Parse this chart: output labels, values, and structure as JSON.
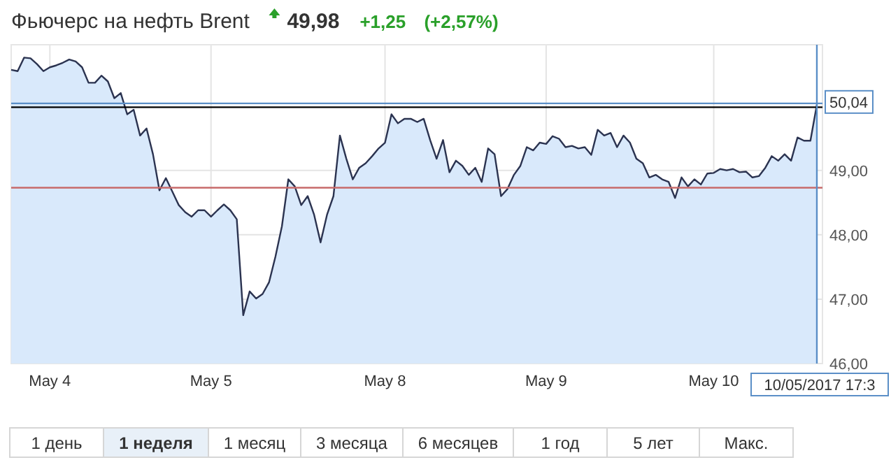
{
  "chart_data": {
    "type": "area",
    "title": "Фьючерс на нефть Brent",
    "annotations": [
      "49,98",
      "+1,25",
      "(+2,57%)",
      "1 день",
      "1 неделя",
      "1 месяц",
      "3 месяца",
      "6 месяцев",
      "1 год",
      "5 лет",
      "Макс."
    ],
    "categories": [
      null,
      null,
      null,
      null,
      null,
      null,
      "May 4",
      null,
      null,
      null,
      null,
      null,
      null,
      null,
      null,
      null,
      null,
      null,
      null,
      null,
      null,
      null,
      null,
      null,
      null,
      null,
      null,
      null,
      null,
      null,
      null,
      "May 5",
      null,
      null,
      null,
      null,
      null,
      null,
      null,
      null,
      null,
      null,
      null,
      null,
      null,
      null,
      null,
      null,
      null,
      null,
      null,
      null,
      null,
      null,
      null,
      null,
      null,
      null,
      "May 8",
      null,
      null,
      null,
      null,
      null,
      null,
      null,
      null,
      null,
      null,
      null,
      null,
      null,
      null,
      null,
      null,
      null,
      null,
      null,
      null,
      null,
      null,
      null,
      null,
      "May 9",
      null,
      null,
      null,
      null,
      null,
      null,
      null,
      null,
      null,
      null,
      null,
      null,
      null,
      null,
      null,
      null,
      null,
      null,
      null,
      null,
      null,
      null,
      null,
      null,
      null,
      "May 10",
      null,
      null,
      null,
      null,
      null,
      null,
      null,
      null,
      null,
      null,
      null,
      null,
      null,
      null,
      null,
      "10/05/2017 17:3"
    ],
    "ylim": [
      46,
      50.95
    ],
    "yticks": [
      {
        "value": 46,
        "label": "46,00"
      },
      {
        "value": 47,
        "label": "47,00"
      },
      {
        "value": 48,
        "label": "48,00"
      },
      {
        "value": 49,
        "label": "49,00"
      }
    ],
    "grid": true,
    "series": [
      {
        "color": "#2b3350",
        "values": [
          50.56,
          50.54,
          50.75,
          50.74,
          50.65,
          50.54,
          50.6,
          50.63,
          50.67,
          50.72,
          50.69,
          50.6,
          50.36,
          50.36,
          50.47,
          50.38,
          50.12,
          50.2,
          49.87,
          49.94,
          49.54,
          49.65,
          49.25,
          48.69,
          48.88,
          48.67,
          48.46,
          48.35,
          48.28,
          48.38,
          48.38,
          48.28,
          48.38,
          48.47,
          48.38,
          48.24,
          46.75,
          47.12,
          47.01,
          47.08,
          47.26,
          47.66,
          48.13,
          48.86,
          48.75,
          48.46,
          48.6,
          48.31,
          47.88,
          48.31,
          48.6,
          49.54,
          49.18,
          48.86,
          49.04,
          49.11,
          49.22,
          49.34,
          49.43,
          49.87,
          49.73,
          49.8,
          49.8,
          49.75,
          49.8,
          49.47,
          49.18,
          49.47,
          48.97,
          49.15,
          49.07,
          48.93,
          49.04,
          48.82,
          49.34,
          49.25,
          48.6,
          48.71,
          48.93,
          49.07,
          49.36,
          49.31,
          49.43,
          49.41,
          49.53,
          49.49,
          49.36,
          49.38,
          49.34,
          49.36,
          49.24,
          49.63,
          49.54,
          49.58,
          49.36,
          49.54,
          49.43,
          49.18,
          49.11,
          48.89,
          48.93,
          48.86,
          48.82,
          48.57,
          48.89,
          48.75,
          48.86,
          48.78,
          48.95,
          48.96,
          49.02,
          49,
          49.02,
          48.97,
          48.98,
          48.89,
          48.91,
          49.04,
          49.22,
          49.15,
          49.25,
          49.15,
          49.51,
          49.46,
          49.46,
          50.02
        ]
      }
    ],
    "ref_lines": [
      {
        "axis": "y",
        "value": 48.73,
        "color": "#c76a6a"
      },
      {
        "axis": "y",
        "value": 49.98,
        "color": "#000000"
      },
      {
        "axis": "y",
        "value": 50.04,
        "color": "#5b8fc7",
        "label": "50,04"
      },
      {
        "axis": "x",
        "value": "10/05/2017 17:3",
        "color": "#5b8fc7"
      }
    ]
  }
}
